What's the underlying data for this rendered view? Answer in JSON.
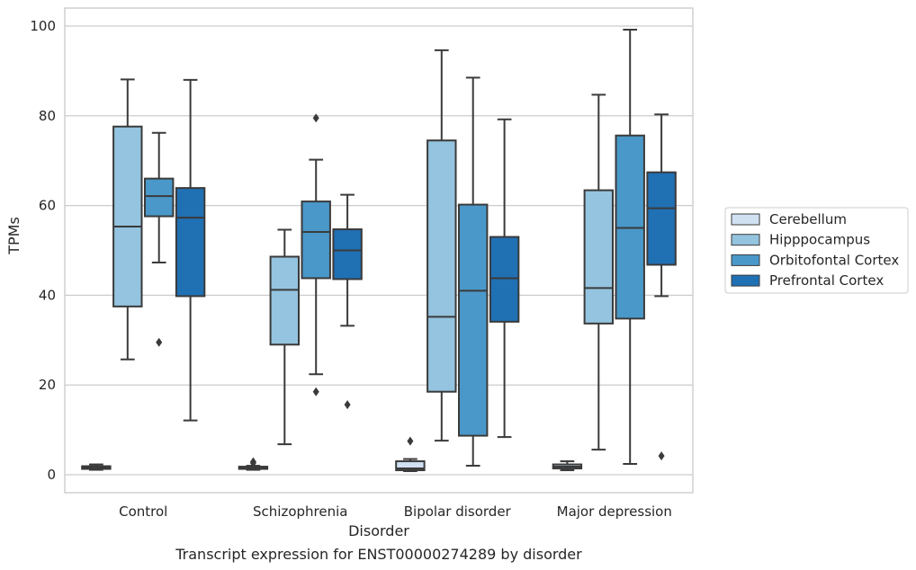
{
  "chart_data": {
    "type": "box",
    "caption": "Transcript expression for ENST00000274289 by disorder",
    "xlabel": "Disorder",
    "ylabel": "TPMs",
    "ylim": [
      -4,
      104
    ],
    "yticks": [
      0,
      20,
      40,
      60,
      80,
      100
    ],
    "grid": "horizontal",
    "legend_position": "right",
    "categories": [
      "Control",
      "Schizophrenia",
      "Bipolar disorder",
      "Major depression"
    ],
    "series": [
      {
        "name": "Cerebellum",
        "color": "#d0e1f2",
        "boxes": [
          {
            "whislo": 1.1,
            "q1": 1.3,
            "med": 1.6,
            "q3": 1.9,
            "whishi": 2.3,
            "fliers": []
          },
          {
            "whislo": 1.1,
            "q1": 1.3,
            "med": 1.5,
            "q3": 1.8,
            "whishi": 2.0,
            "fliers": [
              2.6,
              2.9
            ]
          },
          {
            "whislo": 0.8,
            "q1": 1.0,
            "med": 1.4,
            "q3": 3.0,
            "whishi": 3.5,
            "fliers": [
              7.5
            ]
          },
          {
            "whislo": 1.0,
            "q1": 1.4,
            "med": 1.8,
            "q3": 2.3,
            "whishi": 3.0,
            "fliers": []
          }
        ]
      },
      {
        "name": "Hipppocampus",
        "color": "#94c4df",
        "boxes": [
          {
            "whislo": 25.7,
            "q1": 37.5,
            "med": 55.3,
            "q3": 77.6,
            "whishi": 88.1,
            "fliers": []
          },
          {
            "whislo": 6.8,
            "q1": 29.0,
            "med": 41.2,
            "q3": 48.6,
            "whishi": 54.6,
            "fliers": []
          },
          {
            "whislo": 7.6,
            "q1": 18.5,
            "med": 35.2,
            "q3": 74.5,
            "whishi": 94.6,
            "fliers": []
          },
          {
            "whislo": 5.6,
            "q1": 33.7,
            "med": 41.6,
            "q3": 63.4,
            "whishi": 84.7,
            "fliers": []
          }
        ]
      },
      {
        "name": "Orbitofontal Cortex",
        "color": "#4a98c9",
        "boxes": [
          {
            "whislo": 47.3,
            "q1": 57.6,
            "med": 62.1,
            "q3": 66.0,
            "whishi": 76.2,
            "fliers": [
              29.5
            ]
          },
          {
            "whislo": 22.4,
            "q1": 43.8,
            "med": 54.1,
            "q3": 60.9,
            "whishi": 70.2,
            "fliers": [
              18.5,
              79.5
            ]
          },
          {
            "whislo": 2.0,
            "q1": 8.7,
            "med": 41.0,
            "q3": 60.2,
            "whishi": 88.5,
            "fliers": []
          },
          {
            "whislo": 2.4,
            "q1": 34.8,
            "med": 55.0,
            "q3": 75.6,
            "whishi": 99.2,
            "fliers": []
          }
        ]
      },
      {
        "name": "Prefrontal Cortex",
        "color": "#2070b4",
        "boxes": [
          {
            "whislo": 12.1,
            "q1": 39.8,
            "med": 57.3,
            "q3": 63.9,
            "whishi": 88.0,
            "fliers": []
          },
          {
            "whislo": 33.2,
            "q1": 43.6,
            "med": 50.0,
            "q3": 54.7,
            "whishi": 62.4,
            "fliers": [
              15.6
            ]
          },
          {
            "whislo": 8.4,
            "q1": 34.1,
            "med": 43.8,
            "q3": 53.0,
            "whishi": 79.2,
            "fliers": []
          },
          {
            "whislo": 39.8,
            "q1": 46.8,
            "med": 59.4,
            "q3": 67.4,
            "whishi": 80.3,
            "fliers": [
              4.2
            ]
          }
        ]
      }
    ]
  }
}
